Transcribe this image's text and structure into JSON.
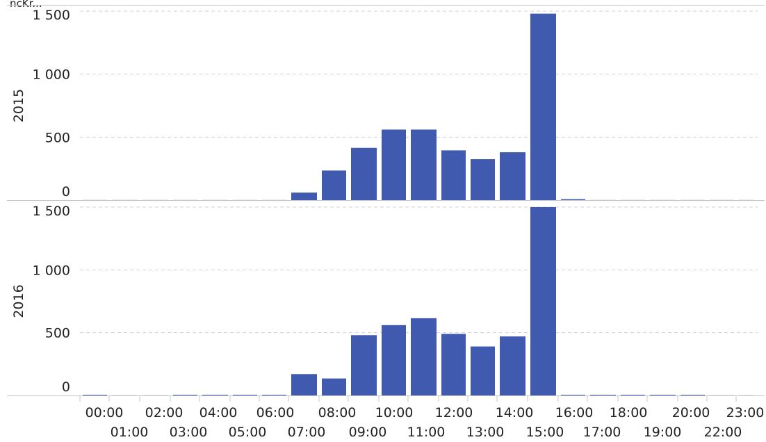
{
  "top_label": "ncKr...",
  "chart_data": {
    "type": "bar",
    "categories": [
      "00:00",
      "01:00",
      "02:00",
      "03:00",
      "04:00",
      "05:00",
      "06:00",
      "07:00",
      "08:00",
      "09:00",
      "10:00",
      "11:00",
      "12:00",
      "13:00",
      "14:00",
      "15:00",
      "16:00",
      "17:00",
      "18:00",
      "19:00",
      "20:00",
      "22:00",
      "23:00"
    ],
    "ylim": [
      0,
      1500
    ],
    "yticks": [
      0,
      500,
      1000,
      1500
    ],
    "ytick_labels": [
      "0",
      "500",
      "1 000",
      "1 500"
    ],
    "grid": true,
    "colors": {
      "bar": "#3f5aae",
      "grid": "#cfcfcf"
    },
    "panels": [
      {
        "ylabel": "2015",
        "values": [
          0,
          0,
          0,
          0,
          0,
          0,
          0,
          60,
          235,
          415,
          560,
          560,
          395,
          325,
          380,
          1480,
          8,
          0,
          0,
          0,
          0,
          0,
          0
        ]
      },
      {
        "ylabel": "2016",
        "values": [
          3,
          0,
          0,
          3,
          3,
          3,
          3,
          170,
          135,
          480,
          560,
          615,
          490,
          390,
          470,
          1500,
          3,
          3,
          3,
          3,
          3,
          0,
          0
        ]
      }
    ]
  }
}
